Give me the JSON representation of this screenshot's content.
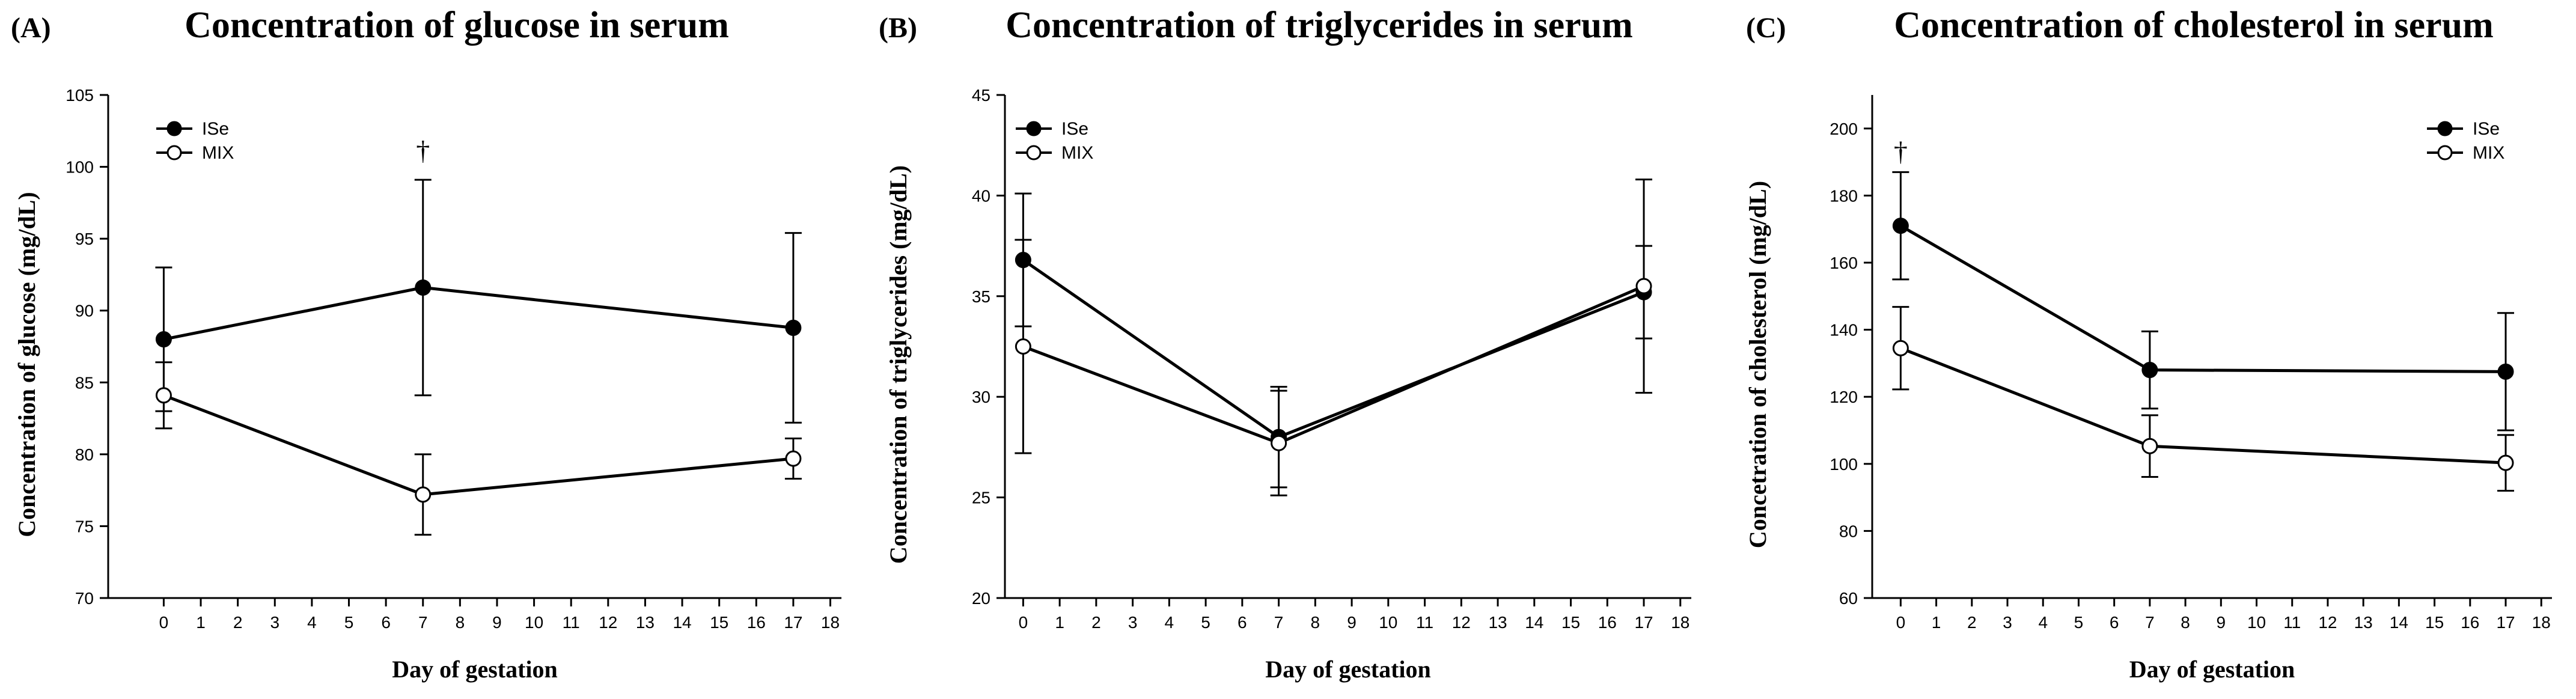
{
  "chart_data": [
    {
      "type": "line",
      "panel_label": "(A)",
      "title": "Concentration of glucose in serum",
      "xlabel": "Day of gestation",
      "ylabel": "Concentration of glucose (mg/dL)",
      "xlim": [
        -1.5,
        18.3
      ],
      "ylim": [
        70,
        105
      ],
      "x_ticks": [
        0,
        1,
        2,
        3,
        4,
        5,
        6,
        7,
        8,
        9,
        10,
        11,
        12,
        13,
        14,
        15,
        16,
        17,
        18
      ],
      "y_ticks": [
        70,
        75,
        80,
        85,
        90,
        95,
        100,
        105
      ],
      "legend_position": "top-left",
      "series": [
        {
          "name": "ISe",
          "marker": "filled",
          "x": [
            0,
            7,
            17
          ],
          "y": [
            88.0,
            91.6,
            88.8
          ],
          "error": [
            5.0,
            7.5,
            6.6
          ]
        },
        {
          "name": "MIX",
          "marker": "open",
          "x": [
            0,
            7,
            17
          ],
          "y": [
            84.1,
            77.2,
            79.7
          ],
          "error": [
            2.3,
            2.8,
            1.4
          ]
        }
      ],
      "annotations": [
        {
          "text": "†",
          "x": 7,
          "y": 100.5
        }
      ]
    },
    {
      "type": "line",
      "panel_label": "(B)",
      "title": "Concentration of triglycerides in serum",
      "xlabel": "Day of gestation",
      "ylabel": "Concentration of triglycerides (mg/dL)",
      "xlim": [
        -0.5,
        18.3
      ],
      "ylim": [
        20,
        45
      ],
      "x_ticks": [
        0,
        1,
        2,
        3,
        4,
        5,
        6,
        7,
        8,
        9,
        10,
        11,
        12,
        13,
        14,
        15,
        16,
        17,
        18
      ],
      "y_ticks": [
        20,
        25,
        30,
        35,
        40,
        45
      ],
      "legend_position": "top-left",
      "series": [
        {
          "name": "ISe",
          "marker": "filled",
          "x": [
            0,
            7,
            17
          ],
          "y": [
            36.8,
            28.0,
            35.2
          ],
          "error": [
            3.3,
            2.5,
            2.3
          ]
        },
        {
          "name": "MIX",
          "marker": "open",
          "x": [
            0,
            7,
            17
          ],
          "y": [
            32.5,
            27.7,
            35.5
          ],
          "error": [
            5.3,
            2.6,
            5.3
          ]
        }
      ],
      "annotations": []
    },
    {
      "type": "line",
      "panel_label": "(C)",
      "title": "Concentration of cholesterol in serum",
      "xlabel": "Day of gestation",
      "ylabel": "Concetration of cholesterol (mg/dL)",
      "xlim": [
        -0.8,
        18.3
      ],
      "ylim": [
        60,
        210
      ],
      "x_ticks": [
        0,
        1,
        2,
        3,
        4,
        5,
        6,
        7,
        8,
        9,
        10,
        11,
        12,
        13,
        14,
        15,
        16,
        17,
        18
      ],
      "y_ticks": [
        60,
        80,
        100,
        120,
        140,
        160,
        180,
        200
      ],
      "legend_position": "top-right",
      "series": [
        {
          "name": "ISe",
          "marker": "filled",
          "x": [
            0,
            7,
            17
          ],
          "y": [
            171,
            128,
            127.5
          ],
          "error": [
            16,
            11.5,
            17.5
          ]
        },
        {
          "name": "MIX",
          "marker": "open",
          "x": [
            0,
            7,
            17
          ],
          "y": [
            134.5,
            105.3,
            100.3
          ],
          "error": [
            12.3,
            9.2,
            8.3
          ]
        }
      ],
      "annotations": [
        {
          "text": "†",
          "x": 0,
          "y": 190.5
        }
      ]
    }
  ]
}
